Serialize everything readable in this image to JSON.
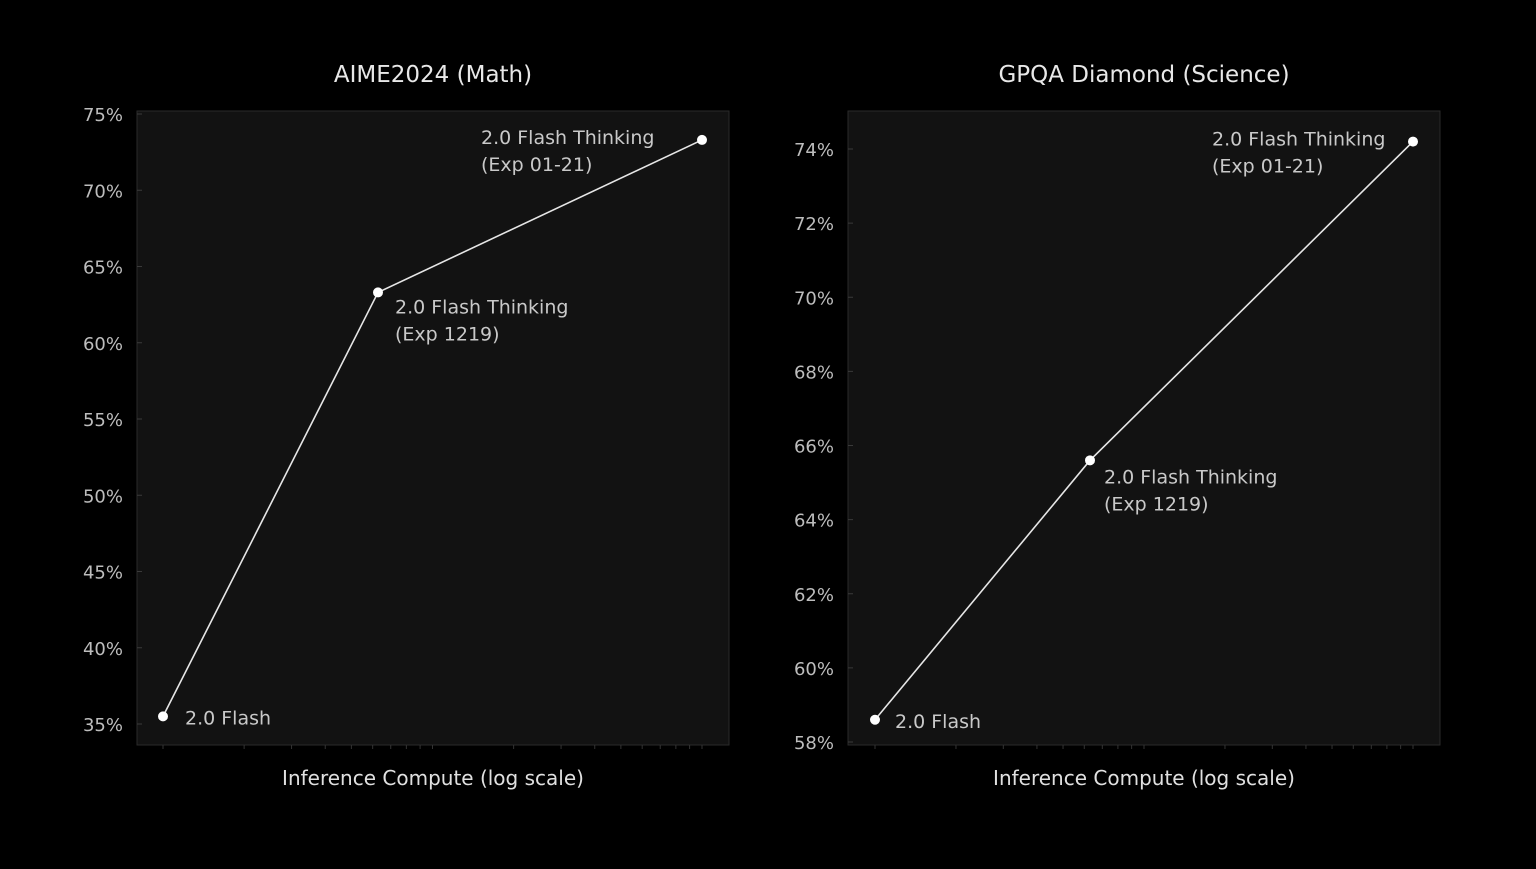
{
  "colors": {
    "background": "#000000",
    "plot_background": "#121212",
    "frame": "#2a2a2a",
    "line": "#e6e6e6",
    "marker": "#ffffff"
  },
  "chart_data": [
    {
      "type": "line",
      "title": "AIME2024 (Math)",
      "xlabel": "Inference Compute (log scale)",
      "ylabel": "",
      "x_scale": "log",
      "ylim": [
        35,
        75
      ],
      "yticks": [
        35,
        40,
        45,
        50,
        55,
        60,
        65,
        70,
        75
      ],
      "ytick_labels": [
        "35%",
        "40%",
        "45%",
        "50%",
        "55%",
        "60%",
        "65%",
        "70%",
        "75%"
      ],
      "grid": false,
      "points": [
        {
          "label_lines": [
            "2.0 Flash"
          ],
          "x_rank": 0,
          "value": 35.5
        },
        {
          "label_lines": [
            "2.0 Flash Thinking",
            "(Exp 1219)"
          ],
          "x_rank": 1,
          "value": 63.3
        },
        {
          "label_lines": [
            "2.0 Flash Thinking",
            "(Exp 01-21)"
          ],
          "x_rank": 2,
          "value": 73.3
        }
      ]
    },
    {
      "type": "line",
      "title": "GPQA Diamond (Science)",
      "xlabel": "Inference Compute (log scale)",
      "ylabel": "",
      "x_scale": "log",
      "ylim": [
        58,
        75
      ],
      "yticks": [
        58,
        60,
        62,
        64,
        66,
        68,
        70,
        72,
        74
      ],
      "ytick_labels": [
        "58%",
        "60%",
        "62%",
        "64%",
        "66%",
        "68%",
        "70%",
        "72%",
        "74%"
      ],
      "grid": false,
      "points": [
        {
          "label_lines": [
            "2.0 Flash"
          ],
          "x_rank": 0,
          "value": 58.6
        },
        {
          "label_lines": [
            "2.0 Flash Thinking",
            "(Exp 1219)"
          ],
          "x_rank": 1,
          "value": 65.6
        },
        {
          "label_lines": [
            "2.0 Flash Thinking",
            "(Exp 01-21)"
          ],
          "x_rank": 2,
          "value": 74.2
        }
      ]
    }
  ]
}
